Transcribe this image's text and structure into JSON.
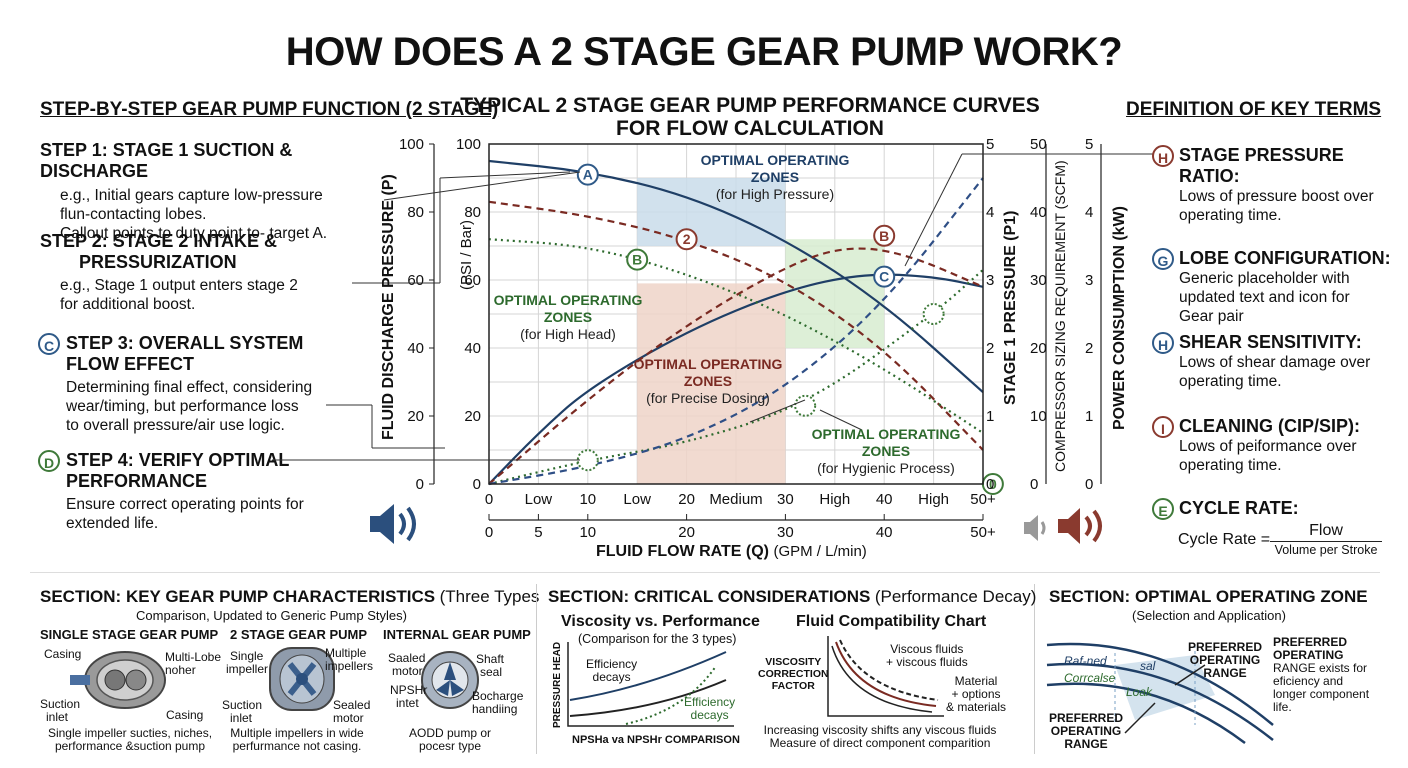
{
  "title": "HOW DOES A 2 STAGE GEAR PUMP WORK?",
  "steps_section": {
    "heading": "STEP-BY-STEP GEAR PUMP FUNCTION (2 STAGE)",
    "steps": [
      {
        "badge": "",
        "title": "STEP 1: STAGE 1 SUCTION & DISCHARGE",
        "lines": [
          "e.g., Initial gears capture low-pressure",
          "flun-contacting lobes.",
          "Callout points to duty point to- target A."
        ]
      },
      {
        "badge": "",
        "title_lines": [
          "STEP 2: STAGE 2 INTAKE &",
          "PRESSURIZATION"
        ],
        "lines": [
          "e.g., Stage 1 output enters stage 2",
          "for additional boost."
        ]
      },
      {
        "badge": "C",
        "title_lines": [
          "STEP 3: OVERALL SYSTEM",
          "FLOW EFFECT"
        ],
        "lines": [
          "Determining final effect, considering",
          "wear/timing, but performance loss",
          "to overall pressure/air use logic."
        ]
      },
      {
        "badge": "D",
        "title_lines": [
          "STEP 4: VERIFY OPTIMAL",
          "PERFORMANCE"
        ],
        "lines": [
          "Ensure correct operating points for",
          "extended life."
        ]
      }
    ]
  },
  "chart_title_lines": [
    "TYPICAL 2 STAGE GEAR PUMP PERFORMANCE CURVES",
    "FOR FLOW CALCULATION"
  ],
  "chart_data": {
    "type": "line",
    "xlabel": "FLUID FLOW RATE (Q)",
    "xlabel_unit": "(GPM / L/min)",
    "xlim": [
      0,
      50
    ],
    "x_ticks_top": [
      "0",
      "Low",
      "10",
      "Low",
      "20",
      "Medium",
      "30",
      "High",
      "40",
      "High",
      "50+"
    ],
    "x_ticks_bottom": [
      "0",
      "5",
      "10",
      "20",
      "30",
      "40",
      "50+"
    ],
    "ylabel_left": "FLUID DISCHARGE PRESSURE (P)",
    "ylabel_left_unit": "(PSI / Bar)",
    "ylim_left": [
      0,
      100
    ],
    "y_ticks_left_outer": [
      "0",
      "20",
      "40",
      "60",
      "80",
      "100"
    ],
    "y_ticks_left_inner": [
      "0",
      "20",
      "40",
      "60",
      "80",
      "100"
    ],
    "ylabel_right1": "STAGE 1 PRESSURE (P1)",
    "y_ticks_right1": [
      "0",
      "1",
      "2",
      "3",
      "4",
      "5"
    ],
    "ylabel_right2": "COMPRESSOR SIZING REQUIREMENT (SCFM)",
    "y_ticks_right2": [
      "0",
      "10",
      "20",
      "30",
      "40",
      "50"
    ],
    "ylabel_right3": "POWER CONSUMPTION (kW)",
    "y_ticks_right3": [
      "0",
      "1",
      "2",
      "3",
      "4",
      "5"
    ],
    "zones": [
      {
        "name": "OPTIMAL OPERATING ZONES",
        "sub": "(for High Pressure)",
        "x": [
          15,
          30
        ],
        "y": [
          70,
          90
        ],
        "color": "#c9dcea"
      },
      {
        "name": "OPTIMAL OPERATING ZONES",
        "sub": "(for Precise Dosing)",
        "x": [
          15,
          30
        ],
        "y": [
          0,
          59
        ],
        "color": "#efd3c8"
      },
      {
        "name": "OPTIMAL OPERATING ZONES",
        "sub": "(for Hygienic Process)",
        "x": [
          30,
          40
        ],
        "y": [
          40,
          72
        ],
        "color": "#d7ecd0"
      },
      {
        "name": "OPTIMAL OPERATING ZONES",
        "sub": "(for High Head)",
        "x": [],
        "y": [],
        "color": ""
      }
    ],
    "series": [
      {
        "color": "#1f3f66",
        "style": "solid",
        "x": [
          0,
          10,
          20,
          30,
          40,
          50
        ],
        "y": [
          95,
          92,
          85,
          72,
          53,
          27
        ]
      },
      {
        "color": "#1f3f66",
        "style": "solid",
        "x": [
          0,
          5,
          10,
          20,
          30,
          38,
          45,
          50
        ],
        "y": [
          0,
          15,
          28,
          45,
          57,
          62,
          61,
          58
        ]
      },
      {
        "color": "#7a2a22",
        "style": "dashed",
        "x": [
          0,
          10,
          20,
          30,
          40,
          50
        ],
        "y": [
          83,
          79,
          72,
          60,
          40,
          10
        ]
      },
      {
        "color": "#7a2a22",
        "style": "dashed",
        "x": [
          0,
          10,
          20,
          30,
          36,
          42,
          50
        ],
        "y": [
          0,
          25,
          47,
          64,
          70,
          68,
          58
        ]
      },
      {
        "color": "#2d6a2d",
        "style": "dotted",
        "x": [
          0,
          10,
          20,
          30,
          40,
          50
        ],
        "y": [
          72,
          70,
          62,
          50,
          34,
          15
        ]
      },
      {
        "color": "#2d6a2d",
        "style": "dotted",
        "x": [
          0,
          10,
          20,
          32,
          45,
          50
        ],
        "y": [
          0,
          7,
          12,
          23,
          50,
          63
        ]
      },
      {
        "color": "#2f4f86",
        "style": "dashed",
        "x": [
          0,
          10,
          20,
          30,
          40,
          50
        ],
        "y": [
          0,
          5,
          13,
          28,
          53,
          90
        ]
      }
    ],
    "markers": [
      {
        "label": "A",
        "x": 10,
        "y": 91,
        "color": "#2f5a88"
      },
      {
        "label": "2",
        "x": 20,
        "y": 72,
        "color": "#8a3a2f"
      },
      {
        "label": "B",
        "x": 40,
        "y": 73,
        "color": "#8a3a2f"
      },
      {
        "label": "B",
        "x": 15,
        "y": 66,
        "color": "#3f7a3a"
      },
      {
        "label": "C",
        "x": 40,
        "y": 61,
        "color": "#2f5a88"
      },
      {
        "label": "",
        "x": 10,
        "y": 7,
        "color": "#3f7a3a"
      },
      {
        "label": "",
        "x": 32,
        "y": 23,
        "color": "#3f7a3a"
      },
      {
        "label": "",
        "x": 45,
        "y": 50,
        "color": "#3f7a3a"
      },
      {
        "label": "0",
        "x": 51,
        "y": 0,
        "color": "#3f7a3a"
      }
    ]
  },
  "terms_section": {
    "heading": "DEFINITION OF KEY TERMS",
    "terms": [
      {
        "badge": "H",
        "color": "#8a3a2f",
        "title": "STAGE PRESSURE RATIO:",
        "lines": [
          "Lows of pressure boost over",
          "operating time."
        ]
      },
      {
        "badge": "G",
        "color": "#2f5a88",
        "title": "LOBE CONFIGURATION:",
        "lines": [
          "Generic placeholder with",
          "updated text and icon for",
          "Gear pair"
        ]
      },
      {
        "badge": "H",
        "color": "#2f5a88",
        "title": "SHEAR SENSITIVITY:",
        "lines": [
          "Lows of shear damage over",
          "operating time."
        ]
      },
      {
        "badge": "I",
        "color": "#8a3a2f",
        "title": "CLEANING (CIP/SIP):",
        "lines": [
          "Lows of peiformance over",
          "operating time."
        ]
      },
      {
        "badge": "E",
        "color": "#3f7a3a",
        "title": "CYCLE RATE:",
        "lines": []
      }
    ],
    "formula": {
      "lhs": "Cycle Rate =",
      "num": "Flow",
      "den": "Volume per Stroke"
    }
  },
  "bottom": {
    "characteristics": {
      "heading": "SECTION: KEY GEAR PUMP CHARACTERISTICS",
      "heading_suffix": "(Three Types",
      "sub": "Comparison, Updated to Generic Pump Styles)",
      "pumps": [
        {
          "name": "SINGLE STAGE GEAR PUMP",
          "callouts": [
            "Casing",
            "Multi-Lobe",
            "noher",
            "Suction",
            "inlet",
            "Casing"
          ],
          "caption": [
            "Single impeller sucties, niches,",
            "performance &suction pump"
          ]
        },
        {
          "name": "2 STAGE GEAR PUMP",
          "callouts": [
            "Single",
            "impeller",
            "Multiple",
            "impellers",
            "Suction",
            "inlet",
            "Sealed",
            "motor"
          ],
          "caption": [
            "Multiple impellers in wide",
            "perfurmance not casing."
          ]
        },
        {
          "name": "INTERNAL GEAR PUMP",
          "callouts": [
            "Saaled",
            "motor",
            "Shaft",
            "seal",
            "NPSHr",
            "intet",
            "Bocharge",
            "handiing"
          ],
          "caption": [
            "AODD pump or",
            "pocesr type"
          ]
        }
      ]
    },
    "considerations": {
      "heading": "SECTION: CRITICAL CONSIDERATIONS",
      "heading_suffix": "(Performance Decay)",
      "viscosity": {
        "title": "Viscosity vs. Performance",
        "sub": "(Comparison for the 3 types)",
        "ylabel": "PRESSURE HEAD",
        "note1": [
          "Efficiency",
          "decays"
        ],
        "note2": [
          "Efficiency",
          "decays"
        ],
        "xlabel": "NPSHa va NPSHr COMPARISON"
      },
      "compat": {
        "title": "Fluid Compatibility Chart",
        "ylabel": [
          "VISCOSITY",
          "CORRECTION",
          "FACTOR"
        ],
        "note1": [
          "Viscous fluids",
          "+ viscous fluids"
        ],
        "note2": [
          "Material",
          "+ options",
          "& materials"
        ],
        "caption": [
          "Increasing viscosity shifts any viscous fluids",
          "Measure of direct component comparition"
        ]
      }
    },
    "zone": {
      "heading": "SECTION: OPTIMAL OPERATING ZONE",
      "sub": "(Selection and Application)",
      "label_top": [
        "PREFERRED",
        "OPERATING",
        "RANGE"
      ],
      "label_bottom": [
        "PREFERRED",
        "OPERATING",
        "RANGE"
      ],
      "curve_labels": [
        "Raf-ned",
        "Corrcalse",
        "Loak",
        "sal"
      ],
      "side_title": [
        "PREFERRED",
        "OPERATING"
      ],
      "side_text": [
        "RANGE exists for",
        "eficiency and",
        "longer component",
        "life."
      ]
    }
  }
}
